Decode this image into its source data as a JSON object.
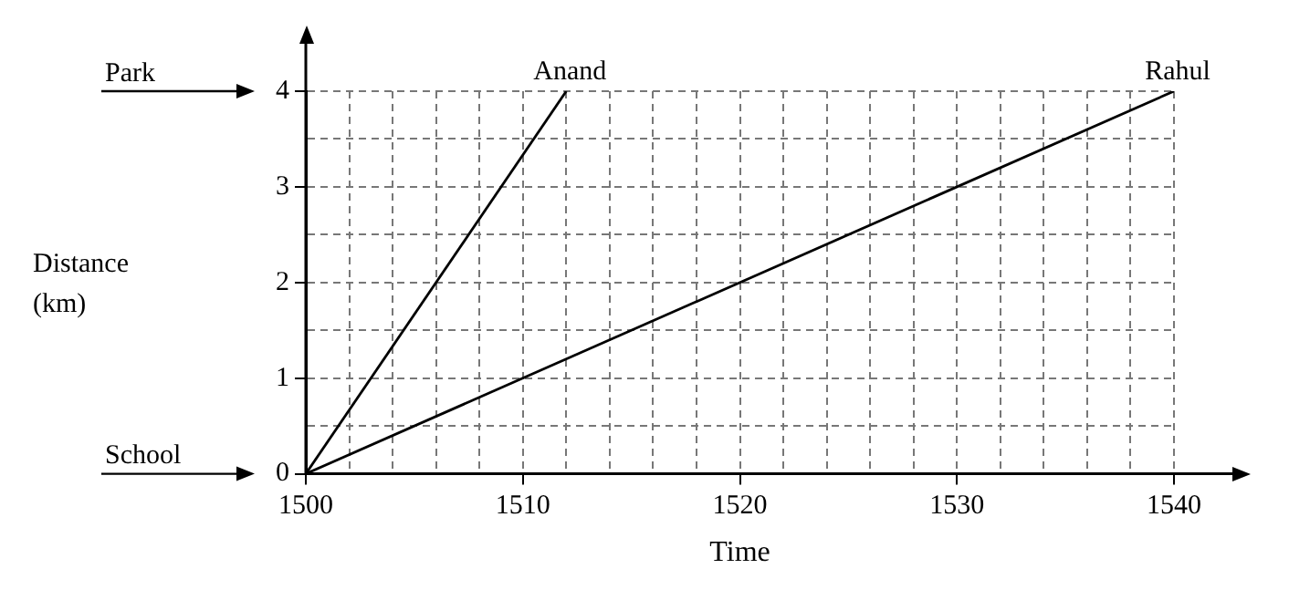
{
  "chart_data": {
    "type": "line",
    "xlabel": "Time",
    "series": [
      {
        "name": "Anand",
        "color": "#000000",
        "x": [
          1500,
          1512
        ],
        "values": [
          0,
          4
        ]
      },
      {
        "name": "Rahul",
        "color": "#000000",
        "x": [
          1500,
          1540
        ],
        "values": [
          0,
          4
        ]
      }
    ],
    "xlim": [
      1500,
      1540
    ],
    "ylim": [
      0,
      4
    ],
    "xticks": [
      1500,
      {
        "value": 1502,
        "label": null
      },
      {
        "value": 1504,
        "label": null
      },
      {
        "value": 1506,
        "label": null
      },
      {
        "value": 1508,
        "label": null
      },
      1510,
      {
        "value": 1512,
        "label": null
      },
      {
        "value": 1514,
        "label": null
      },
      {
        "value": 1516,
        "label": null
      },
      {
        "value": 1518,
        "label": null
      },
      1520,
      {
        "value": 1522,
        "label": null
      },
      {
        "value": 1524,
        "label": null
      },
      {
        "value": 1526,
        "label": null
      },
      {
        "value": 1528,
        "label": null
      },
      1530,
      {
        "value": 1532,
        "label": null
      },
      {
        "value": 1534,
        "label": null
      },
      {
        "value": 1536,
        "label": null
      },
      {
        "value": 1538,
        "label": null
      },
      1540
    ],
    "yticks": [
      0,
      {
        "value": 0.5,
        "label": null
      },
      1,
      {
        "value": 1.5,
        "label": null
      },
      2,
      {
        "value": 2.5,
        "label": null
      },
      3,
      {
        "value": 3.5,
        "label": null
      },
      4
    ],
    "annotations": [
      "Park",
      "School",
      "Distance\n(km)"
    ],
    "grid": true,
    "legend": false,
    "marker": "none",
    "line_style": "solid"
  }
}
